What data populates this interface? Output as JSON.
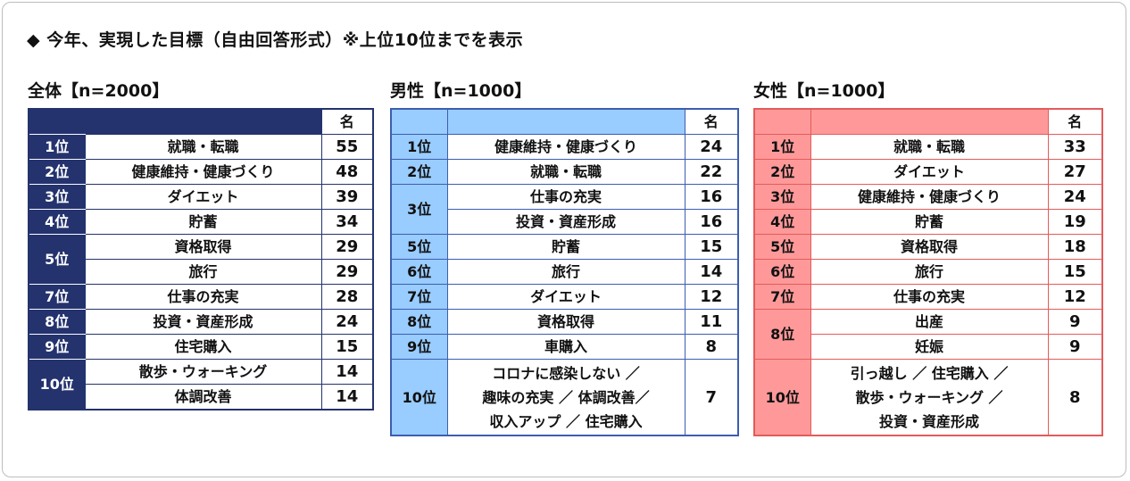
{
  "title": "◆ 今年、実現した目標（自由回答形式）※上位10位までを表示",
  "count_header": "名",
  "tables": [
    {
      "heading": "全体【n=2000】",
      "rows": [
        {
          "rank": "1位",
          "items": [
            {
              "label": "就職・転職",
              "count": "55"
            }
          ]
        },
        {
          "rank": "2位",
          "items": [
            {
              "label": "健康維持・健康づくり",
              "count": "48"
            }
          ]
        },
        {
          "rank": "3位",
          "items": [
            {
              "label": "ダイエット",
              "count": "39"
            }
          ]
        },
        {
          "rank": "4位",
          "items": [
            {
              "label": "貯蓄",
              "count": "34"
            }
          ]
        },
        {
          "rank": "5位",
          "items": [
            {
              "label": "資格取得",
              "count": "29"
            },
            {
              "label": "旅行",
              "count": "29"
            }
          ]
        },
        {
          "rank": "7位",
          "items": [
            {
              "label": "仕事の充実",
              "count": "28"
            }
          ]
        },
        {
          "rank": "8位",
          "items": [
            {
              "label": "投資・資産形成",
              "count": "24"
            }
          ]
        },
        {
          "rank": "9位",
          "items": [
            {
              "label": "住宅購入",
              "count": "15"
            }
          ]
        },
        {
          "rank": "10位",
          "items": [
            {
              "label": "散歩・ウォーキング",
              "count": "14"
            },
            {
              "label": "体調改善",
              "count": "14"
            }
          ]
        }
      ]
    },
    {
      "heading": "男性【n=1000】",
      "rows": [
        {
          "rank": "1位",
          "items": [
            {
              "label": "健康維持・健康づくり",
              "count": "24"
            }
          ]
        },
        {
          "rank": "2位",
          "items": [
            {
              "label": "就職・転職",
              "count": "22"
            }
          ]
        },
        {
          "rank": "3位",
          "items": [
            {
              "label": "仕事の充実",
              "count": "16"
            },
            {
              "label": "投資・資産形成",
              "count": "16"
            }
          ]
        },
        {
          "rank": "5位",
          "items": [
            {
              "label": "貯蓄",
              "count": "15"
            }
          ]
        },
        {
          "rank": "6位",
          "items": [
            {
              "label": "旅行",
              "count": "14"
            }
          ]
        },
        {
          "rank": "7位",
          "items": [
            {
              "label": "ダイエット",
              "count": "12"
            }
          ]
        },
        {
          "rank": "8位",
          "items": [
            {
              "label": "資格取得",
              "count": "11"
            }
          ]
        },
        {
          "rank": "9位",
          "items": [
            {
              "label": "車購入",
              "count": "8"
            }
          ]
        },
        {
          "rank": "10位",
          "multi": true,
          "items": [
            {
              "lines": [
                "コロナに感染しない ／",
                "趣味の充実 ／ 体調改善／",
                "収入アップ ／ 住宅購入"
              ],
              "count": "7"
            }
          ]
        }
      ]
    },
    {
      "heading": "女性【n=1000】",
      "rows": [
        {
          "rank": "1位",
          "items": [
            {
              "label": "就職・転職",
              "count": "33"
            }
          ]
        },
        {
          "rank": "2位",
          "items": [
            {
              "label": "ダイエット",
              "count": "27"
            }
          ]
        },
        {
          "rank": "3位",
          "items": [
            {
              "label": "健康維持・健康づくり",
              "count": "24"
            }
          ]
        },
        {
          "rank": "4位",
          "items": [
            {
              "label": "貯蓄",
              "count": "19"
            }
          ]
        },
        {
          "rank": "5位",
          "items": [
            {
              "label": "資格取得",
              "count": "18"
            }
          ]
        },
        {
          "rank": "6位",
          "items": [
            {
              "label": "旅行",
              "count": "15"
            }
          ]
        },
        {
          "rank": "7位",
          "items": [
            {
              "label": "仕事の充実",
              "count": "12"
            }
          ]
        },
        {
          "rank": "8位",
          "items": [
            {
              "label": "出産",
              "count": "9"
            },
            {
              "label": "妊娠",
              "count": "9"
            }
          ]
        },
        {
          "rank": "10位",
          "multi": true,
          "items": [
            {
              "lines": [
                "引っ越し ／ 住宅購入 ／",
                "散歩・ウォーキング ／",
                "投資・資産形成"
              ],
              "count": "8"
            }
          ]
        }
      ]
    }
  ],
  "colors": {
    "total": "#24336e",
    "male": "#99ccff",
    "female": "#ff9999"
  }
}
